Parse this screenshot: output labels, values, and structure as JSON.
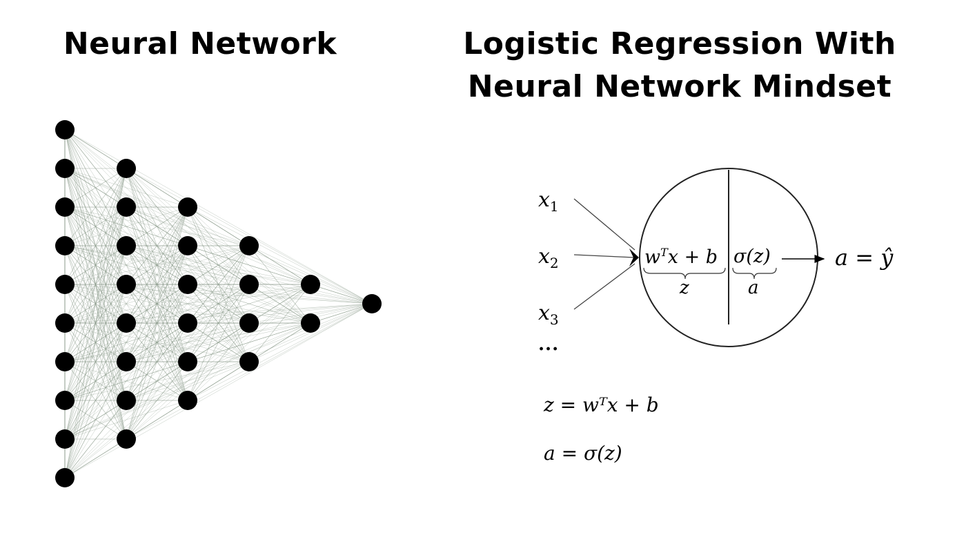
{
  "titles": {
    "left": "Neural Network",
    "right_line1": "Logistic Regression With",
    "right_line2": "Neural Network Mindset"
  },
  "network": {
    "layers": [
      10,
      8,
      6,
      4,
      2,
      1
    ],
    "node_color": "#000000",
    "edge_color": "#8a9a8a"
  },
  "neuron": {
    "inputs": [
      "x",
      "x",
      "x"
    ],
    "input_subscripts": [
      "1",
      "2",
      "3"
    ],
    "ellipsis": "...",
    "linear_expr": "w",
    "linear_sup": "T",
    "linear_rest": "x + b",
    "linear_label": "z",
    "activation_expr": "σ(z)",
    "activation_label": "a",
    "output_lhs": "a",
    "output_eq": "=",
    "output_rhs": "ŷ"
  },
  "equations": {
    "eq1": "z = wᵀx + b",
    "eq2": "a = σ(z)"
  }
}
